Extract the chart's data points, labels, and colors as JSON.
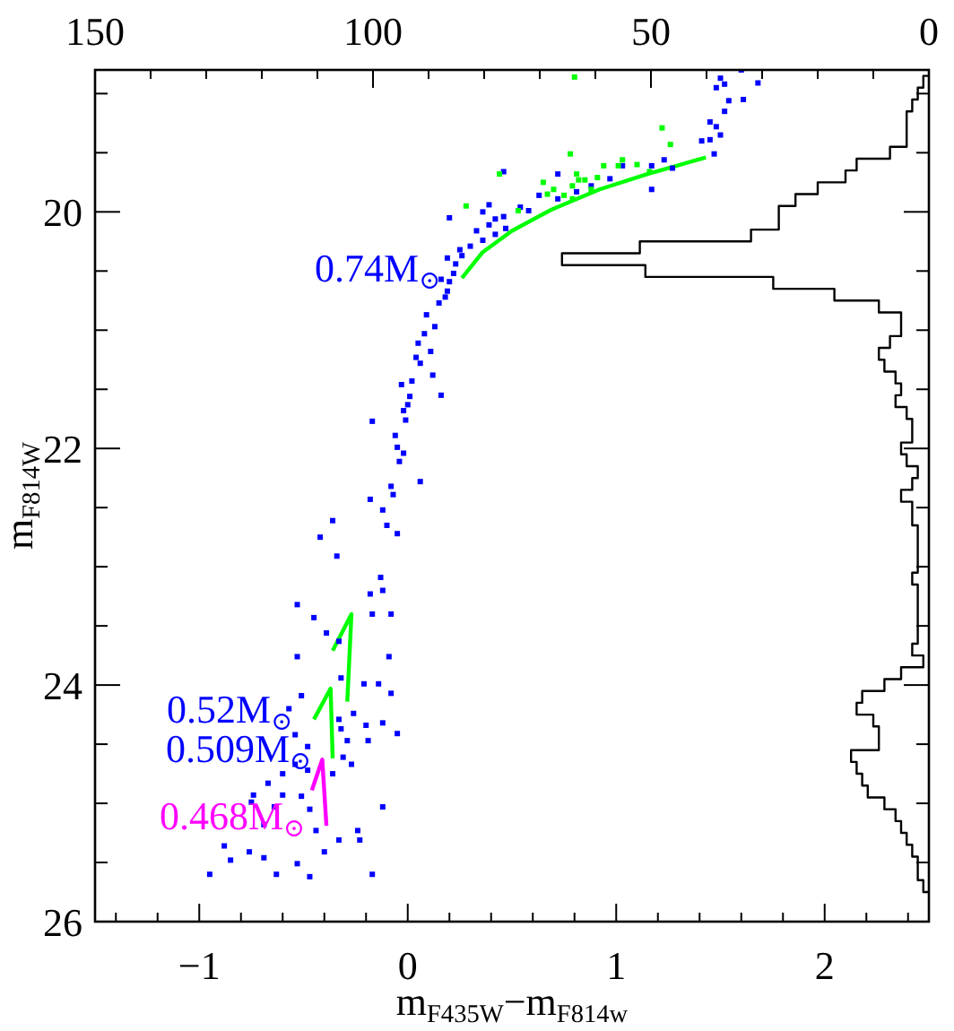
{
  "chart_data": {
    "type": "scatter",
    "xlabel": "m$_{F435W}$−m$_{F814w}$",
    "ylabel": "m$_{F814W}$",
    "xlim": [
      -1.5,
      2.5
    ],
    "ylim": [
      26,
      18.8
    ],
    "x2lim": [
      150,
      0
    ],
    "xticks": [
      {
        "value": -1.4,
        "label": null
      },
      {
        "value": -1.2,
        "label": null
      },
      {
        "value": -1,
        "label": "−1"
      },
      {
        "value": -0.8,
        "label": null
      },
      {
        "value": -0.6,
        "label": null
      },
      {
        "value": -0.4,
        "label": null
      },
      {
        "value": -0.2,
        "label": null
      },
      0,
      {
        "value": 0.2,
        "label": null
      },
      {
        "value": 0.4,
        "label": null
      },
      {
        "value": 0.6,
        "label": null
      },
      {
        "value": 0.8,
        "label": null
      },
      1,
      {
        "value": 1.2,
        "label": null
      },
      {
        "value": 1.4,
        "label": null
      },
      {
        "value": 1.6,
        "label": null
      },
      {
        "value": 1.8,
        "label": null
      },
      2,
      {
        "value": 2.2,
        "label": null
      },
      {
        "value": 2.4,
        "label": null
      }
    ],
    "yticks": [
      {
        "value": 19,
        "label": null
      },
      {
        "value": 19.5,
        "label": null
      },
      20,
      {
        "value": 20.5,
        "label": null
      },
      {
        "value": 21,
        "label": null
      },
      {
        "value": 21.5,
        "label": null
      },
      22,
      {
        "value": 22.5,
        "label": null
      },
      {
        "value": 23,
        "label": null
      },
      {
        "value": 23.5,
        "label": null
      },
      24,
      {
        "value": 24.5,
        "label": null
      },
      {
        "value": 25,
        "label": null
      },
      {
        "value": 25.5,
        "label": null
      },
      26
    ],
    "x2ticks": [
      150,
      {
        "value": 140,
        "label": null
      },
      {
        "value": 130,
        "label": null
      },
      {
        "value": 120,
        "label": null
      },
      {
        "value": 110,
        "label": null
      },
      100,
      {
        "value": 90,
        "label": null
      },
      {
        "value": 80,
        "label": null
      },
      {
        "value": 70,
        "label": null
      },
      {
        "value": 60,
        "label": null
      },
      50,
      {
        "value": 40,
        "label": null
      },
      {
        "value": 30,
        "label": null
      },
      {
        "value": 20,
        "label": null
      },
      {
        "value": 10,
        "label": null
      },
      0
    ],
    "series": [
      {
        "marker": "square",
        "color": "#0000ff",
        "x": [
          1.6,
          1.68,
          1.5,
          1.52,
          1.48,
          1.54,
          1.61,
          1.52,
          1.45,
          1.48,
          1.5,
          1.45,
          1.41,
          1.47,
          1.23,
          1.27,
          1.17,
          1.17,
          1.03,
          0.97,
          0.88,
          0.81,
          0.72,
          0.72,
          0.63,
          0.58,
          0.54,
          0.46,
          0.42,
          0.39,
          0.36,
          0.46,
          0.2,
          0.47,
          0.42,
          0.36,
          0.3,
          0.26,
          0.23,
          0.22,
          0.2,
          0.19,
          0.18,
          0.16,
          0.33,
          0.39,
          0.19,
          0.25,
          0.15,
          0.09,
          0.13,
          0.08,
          0.05,
          0.11,
          0.04,
          0.06,
          0.12,
          0.02,
          -0.03,
          0.01,
          -0.02,
          0.0,
          -0.01,
          -0.06,
          -0.05,
          -0.02,
          -0.04,
          -0.17,
          0.06,
          -0.08,
          0.16,
          -0.07,
          -0.18,
          -0.36,
          -0.12,
          -0.1,
          -0.42,
          -0.34,
          -0.05,
          -0.13,
          -0.18,
          -0.12,
          -0.53,
          -0.45,
          -0.39,
          -0.17,
          -0.08,
          -0.33,
          -0.09,
          -0.53,
          -0.21,
          -0.14,
          -0.08,
          -0.51,
          -0.57,
          -0.32,
          -0.26,
          -0.33,
          -0.2,
          -0.12,
          -0.05,
          -0.32,
          -0.29,
          -0.54,
          -0.48,
          -0.19,
          -0.31,
          -0.27,
          -0.54,
          -0.6,
          -0.48,
          -0.36,
          -0.67,
          -0.6,
          -0.51,
          -0.75,
          -0.64,
          -0.74,
          -0.12,
          -0.47,
          -0.44,
          -0.69,
          -0.33,
          -0.24,
          -0.23,
          -0.88,
          -0.4,
          -0.69,
          -0.53,
          -0.63,
          -0.47,
          -0.17,
          -0.95,
          -0.85,
          -0.76
        ],
        "values": [
          18.8,
          18.91,
          18.87,
          18.92,
          18.95,
          19.06,
          19.05,
          19.15,
          19.24,
          19.28,
          19.35,
          19.39,
          19.4,
          19.51,
          19.56,
          19.63,
          19.81,
          19.61,
          19.61,
          19.72,
          19.78,
          19.83,
          19.89,
          19.68,
          19.86,
          19.99,
          19.96,
          20.04,
          20.06,
          19.94,
          20.0,
          19.66,
          20.05,
          20.14,
          20.19,
          20.24,
          20.29,
          20.37,
          20.44,
          20.52,
          20.59,
          20.67,
          20.72,
          20.57,
          20.16,
          20.11,
          20.39,
          20.32,
          20.77,
          20.87,
          20.97,
          21.03,
          21.11,
          21.18,
          21.23,
          21.28,
          21.38,
          21.43,
          21.46,
          21.56,
          21.68,
          21.63,
          21.76,
          21.89,
          21.99,
          22.04,
          22.11,
          21.77,
          22.28,
          22.32,
          21.55,
          22.39,
          22.43,
          22.61,
          22.52,
          22.65,
          22.75,
          22.91,
          22.72,
          23.09,
          23.23,
          23.2,
          23.32,
          23.43,
          23.56,
          23.4,
          23.4,
          23.63,
          23.76,
          23.76,
          23.99,
          23.99,
          24.07,
          24.09,
          24.2,
          23.94,
          24.24,
          24.29,
          24.34,
          24.32,
          24.41,
          24.37,
          24.47,
          24.42,
          24.52,
          24.47,
          24.61,
          24.67,
          24.67,
          24.75,
          24.72,
          24.75,
          24.83,
          24.93,
          24.94,
          24.99,
          25.03,
          24.93,
          25.03,
          25.05,
          25.23,
          25.18,
          25.31,
          25.23,
          25.31,
          25.36,
          25.41,
          25.46,
          25.51,
          25.6,
          25.62,
          25.6,
          25.6,
          25.48,
          25.41
        ]
      },
      {
        "marker": "square",
        "color": "#00ff00",
        "x": [
          0.8,
          1.22,
          1.26,
          0.78,
          0.94,
          1.01,
          1.03,
          1.1,
          0.81,
          0.82,
          0.85,
          0.91,
          0.65,
          0.7,
          0.79,
          0.44,
          0.88,
          0.79,
          0.75,
          0.67,
          0.28,
          0.53,
          1.16
        ],
        "values": [
          18.86,
          19.29,
          19.43,
          19.51,
          19.61,
          19.61,
          19.56,
          19.6,
          19.68,
          19.73,
          19.73,
          19.71,
          19.75,
          19.81,
          19.78,
          19.68,
          19.81,
          19.89,
          19.86,
          19.85,
          19.95,
          19.99,
          19.66
        ]
      },
      {
        "type": "line",
        "color": "#00ff00",
        "x": [
          0.26,
          0.36,
          0.5,
          0.69,
          0.92,
          1.15,
          1.43
        ],
        "values": [
          20.56,
          20.34,
          20.16,
          19.98,
          19.81,
          19.68,
          19.54
        ]
      },
      {
        "type": "line",
        "color": "#00ff00",
        "x": [
          -0.36,
          -0.27,
          -0.29
        ],
        "values": [
          23.71,
          23.4,
          24.14
        ]
      },
      {
        "type": "line",
        "color": "#00ff00",
        "x": [
          -0.45,
          -0.37,
          -0.36
        ],
        "values": [
          24.29,
          24.03,
          24.62
        ]
      },
      {
        "type": "line",
        "color": "#ff00ff",
        "x": [
          -0.46,
          -0.41,
          -0.39
        ],
        "values": [
          24.89,
          24.63,
          25.19
        ]
      },
      {
        "type": "line",
        "axis": "x2",
        "color": "#000000",
        "x": [
          0,
          1,
          1,
          2,
          2,
          3,
          3,
          4,
          4,
          4,
          4,
          4,
          4,
          7,
          7,
          13,
          13,
          15,
          15,
          20,
          20,
          24,
          24,
          27,
          27,
          27,
          27,
          32,
          32,
          52,
          52,
          66,
          66,
          51,
          51,
          28,
          28,
          17,
          17,
          9,
          9,
          5,
          5,
          5,
          5,
          7,
          7,
          9,
          9,
          8,
          8,
          6,
          6,
          5,
          5,
          6,
          6,
          4,
          4,
          3,
          3,
          3,
          3,
          5,
          5,
          4,
          4,
          2,
          2,
          3,
          3,
          5,
          5,
          3,
          3,
          3,
          3,
          2,
          2,
          2,
          2,
          2,
          2,
          2,
          2,
          3,
          3,
          2,
          2,
          2,
          2,
          2,
          2,
          2,
          2,
          2,
          2,
          3,
          3,
          1,
          1,
          5,
          5,
          8,
          8,
          12,
          12,
          13,
          13,
          10,
          10,
          9,
          9,
          9,
          9,
          14,
          14,
          13,
          13,
          12,
          12,
          11,
          11,
          8,
          8,
          6,
          6,
          5,
          5,
          4,
          4,
          3,
          3,
          2,
          2,
          2,
          2,
          1,
          1,
          0
        ],
        "values": [
          18.85,
          18.85,
          18.95,
          18.95,
          19.05,
          19.05,
          19.15,
          19.15,
          19.25,
          19.25,
          19.35,
          19.35,
          19.45,
          19.45,
          19.55,
          19.55,
          19.65,
          19.65,
          19.75,
          19.75,
          19.85,
          19.85,
          19.95,
          19.95,
          20.05,
          20.05,
          20.15,
          20.15,
          20.25,
          20.25,
          20.35,
          20.35,
          20.45,
          20.45,
          20.55,
          20.55,
          20.65,
          20.65,
          20.75,
          20.75,
          20.85,
          20.85,
          20.95,
          20.95,
          21.05,
          21.05,
          21.15,
          21.15,
          21.25,
          21.25,
          21.35,
          21.35,
          21.45,
          21.45,
          21.55,
          21.55,
          21.65,
          21.65,
          21.75,
          21.75,
          21.85,
          21.85,
          21.95,
          21.95,
          22.05,
          22.05,
          22.15,
          22.15,
          22.25,
          22.25,
          22.35,
          22.35,
          22.45,
          22.45,
          22.55,
          22.55,
          22.65,
          22.65,
          22.75,
          22.75,
          22.85,
          22.85,
          22.95,
          22.95,
          23.05,
          23.05,
          23.15,
          23.15,
          23.25,
          23.25,
          23.35,
          23.35,
          23.45,
          23.45,
          23.55,
          23.55,
          23.65,
          23.65,
          23.75,
          23.75,
          23.85,
          23.85,
          23.95,
          23.95,
          24.05,
          24.05,
          24.15,
          24.15,
          24.25,
          24.25,
          24.35,
          24.35,
          24.45,
          24.45,
          24.55,
          24.55,
          24.65,
          24.65,
          24.75,
          24.75,
          24.85,
          24.85,
          24.95,
          24.95,
          25.05,
          25.05,
          25.15,
          25.15,
          25.25,
          25.25,
          25.35,
          25.35,
          25.45,
          25.45,
          25.55,
          25.55,
          25.65,
          25.65,
          25.75,
          25.75
        ]
      }
    ],
    "annotations": [
      {
        "text": "0.74M$_{⊙}$",
        "x": 0.26,
        "y": 20.56
      },
      {
        "text": "0.52M$_{⊙}$",
        "x": -0.45,
        "y": 24.29
      },
      {
        "text": "0.509M$_{⊙}$",
        "x": -0.36,
        "y": 24.62
      },
      {
        "text": "0.468M$_{⊙}$",
        "x": -0.39,
        "y": 25.19
      }
    ]
  }
}
